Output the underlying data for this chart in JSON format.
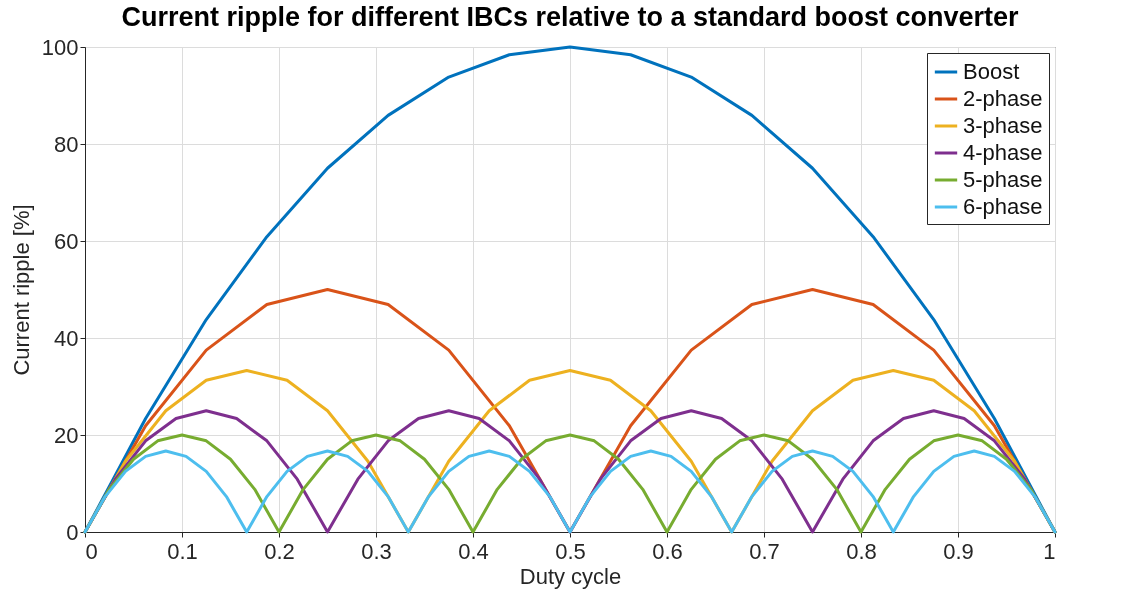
{
  "chart_data": {
    "type": "line",
    "title": "Current ripple for different IBCs relative to a standard boost converter",
    "xlabel": "Duty cycle",
    "ylabel": "Current ripple [%]",
    "xlim": [
      0,
      1
    ],
    "ylim": [
      0,
      100
    ],
    "xticks": [
      0,
      0.1,
      0.2,
      0.3,
      0.4,
      0.5,
      0.6,
      0.7,
      0.8,
      0.9,
      1
    ],
    "yticks": [
      0,
      20,
      40,
      60,
      80,
      100
    ],
    "grid": true,
    "legend": "top right",
    "series": [
      {
        "name": "Boost",
        "color": "#0072bd",
        "x": [
          0,
          0.0625,
          0.125,
          0.1875,
          0.25,
          0.3125,
          0.375,
          0.4375,
          0.5,
          0.5625,
          0.625,
          0.6875,
          0.75,
          0.8125,
          0.875,
          0.9375,
          1
        ],
        "values": [
          0,
          23.4,
          43.8,
          60.9,
          75,
          85.9,
          93.8,
          98.4,
          100,
          98.4,
          93.8,
          85.9,
          75,
          60.9,
          43.8,
          23.4,
          0
        ]
      },
      {
        "name": "2-phase",
        "color": "#d95319",
        "x": [
          0,
          0.0625,
          0.125,
          0.1875,
          0.25,
          0.3125,
          0.375,
          0.4375,
          0.5,
          0.5625,
          0.625,
          0.6875,
          0.75,
          0.8125,
          0.875,
          0.9375,
          1
        ],
        "values": [
          0,
          21.9,
          37.5,
          46.9,
          50,
          46.9,
          37.5,
          21.9,
          0,
          21.9,
          37.5,
          46.9,
          50,
          46.9,
          37.5,
          21.9,
          0
        ]
      },
      {
        "name": "3-phase",
        "color": "#edb120",
        "x": [
          0,
          0.0417,
          0.0833,
          0.125,
          0.1667,
          0.2083,
          0.25,
          0.2917,
          0.3333,
          0.375,
          0.4167,
          0.4583,
          0.5,
          0.5417,
          0.5833,
          0.625,
          0.6667,
          0.7083,
          0.75,
          0.7917,
          0.8333,
          0.875,
          0.9167,
          0.9583,
          1
        ],
        "values": [
          0,
          14.6,
          25,
          31.3,
          33.3,
          31.3,
          25,
          14.6,
          0,
          14.6,
          25,
          31.3,
          33.3,
          31.3,
          25,
          14.6,
          0,
          14.6,
          25,
          31.3,
          33.3,
          31.3,
          25,
          14.6,
          0
        ]
      },
      {
        "name": "4-phase",
        "color": "#7e2f8e",
        "x": [
          0,
          0.0313,
          0.0625,
          0.0938,
          0.125,
          0.1563,
          0.1875,
          0.2188,
          0.25,
          0.2813,
          0.3125,
          0.3438,
          0.375,
          0.4063,
          0.4375,
          0.4688,
          0.5,
          0.5313,
          0.5625,
          0.5938,
          0.625,
          0.6563,
          0.6875,
          0.7188,
          0.75,
          0.7813,
          0.8125,
          0.8438,
          0.875,
          0.9063,
          0.9375,
          0.9688,
          1
        ],
        "values": [
          0,
          10.9,
          18.8,
          23.4,
          25,
          23.4,
          18.8,
          10.9,
          0,
          10.9,
          18.8,
          23.4,
          25,
          23.4,
          18.8,
          10.9,
          0,
          10.9,
          18.8,
          23.4,
          25,
          23.4,
          18.8,
          10.9,
          0,
          10.9,
          18.8,
          23.4,
          25,
          23.4,
          18.8,
          10.9,
          0
        ]
      },
      {
        "name": "5-phase",
        "color": "#77ac30",
        "x": [
          0,
          0.025,
          0.05,
          0.075,
          0.1,
          0.125,
          0.15,
          0.175,
          0.2,
          0.225,
          0.25,
          0.275,
          0.3,
          0.325,
          0.35,
          0.375,
          0.4,
          0.425,
          0.45,
          0.475,
          0.5,
          0.525,
          0.55,
          0.575,
          0.6,
          0.625,
          0.65,
          0.675,
          0.7,
          0.725,
          0.75,
          0.775,
          0.8,
          0.825,
          0.85,
          0.875,
          0.9,
          0.925,
          0.95,
          0.975,
          1
        ],
        "values": [
          0,
          8.8,
          15,
          18.8,
          20,
          18.8,
          15,
          8.8,
          0,
          8.8,
          15,
          18.8,
          20,
          18.8,
          15,
          8.8,
          0,
          8.8,
          15,
          18.8,
          20,
          18.8,
          15,
          8.8,
          0,
          8.8,
          15,
          18.8,
          20,
          18.8,
          15,
          8.8,
          0,
          8.8,
          15,
          18.8,
          20,
          18.8,
          15,
          8.8,
          0
        ]
      },
      {
        "name": "6-phase",
        "color": "#4dbeee",
        "x": [
          0,
          0.0208,
          0.0417,
          0.0625,
          0.0833,
          0.1042,
          0.125,
          0.1458,
          0.1667,
          0.1875,
          0.2083,
          0.2292,
          0.25,
          0.2708,
          0.2917,
          0.3125,
          0.3333,
          0.3542,
          0.375,
          0.3958,
          0.4167,
          0.4375,
          0.4583,
          0.4792,
          0.5,
          0.5208,
          0.5417,
          0.5625,
          0.5833,
          0.6042,
          0.625,
          0.6458,
          0.6667,
          0.6875,
          0.7083,
          0.7292,
          0.75,
          0.7708,
          0.7917,
          0.8125,
          0.8333,
          0.8542,
          0.875,
          0.8958,
          0.9167,
          0.9375,
          0.9583,
          0.9792,
          1
        ],
        "values": [
          0,
          7.3,
          12.5,
          15.6,
          16.7,
          15.6,
          12.5,
          7.3,
          0,
          7.3,
          12.5,
          15.6,
          16.7,
          15.6,
          12.5,
          7.3,
          0,
          7.3,
          12.5,
          15.6,
          16.7,
          15.6,
          12.5,
          7.3,
          0,
          7.3,
          12.5,
          15.6,
          16.7,
          15.6,
          12.5,
          7.3,
          0,
          7.3,
          12.5,
          15.6,
          16.7,
          15.6,
          12.5,
          7.3,
          0,
          7.3,
          12.5,
          15.6,
          16.7,
          15.6,
          12.5,
          7.3,
          0
        ]
      }
    ]
  }
}
